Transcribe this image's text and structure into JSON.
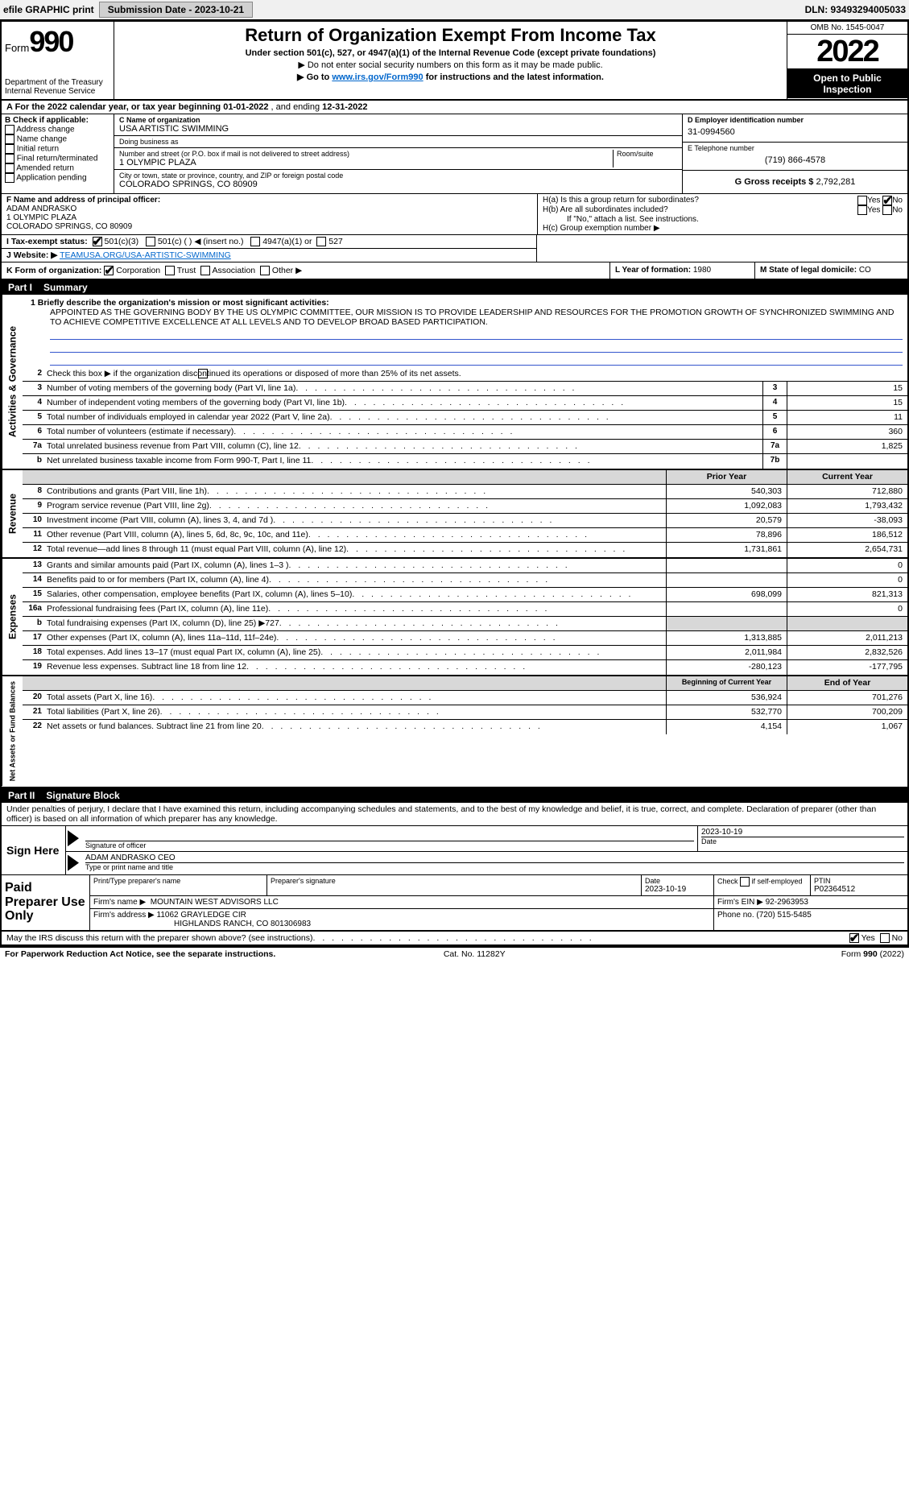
{
  "topbar": {
    "efile_label": "efile GRAPHIC print",
    "submission_label": "Submission Date - 2023-10-21",
    "dln_label": "DLN: 93493294005033"
  },
  "header": {
    "form_word": "Form",
    "form_number": "990",
    "dept1": "Department of the Treasury",
    "dept2": "Internal Revenue Service",
    "title": "Return of Organization Exempt From Income Tax",
    "subtitle": "Under section 501(c), 527, or 4947(a)(1) of the Internal Revenue Code (except private foundations)",
    "note1": "▶ Do not enter social security numbers on this form as it may be made public.",
    "note2_pre": "▶ Go to ",
    "note2_link": "www.irs.gov/Form990",
    "note2_post": " for instructions and the latest information.",
    "omb": "OMB No. 1545-0047",
    "year": "2022",
    "open": "Open to Public Inspection"
  },
  "period": {
    "text_pre": "A For the 2022 calendar year, or tax year beginning ",
    "begin": "01-01-2022",
    "mid": "   , and ending ",
    "end": "12-31-2022"
  },
  "colB": {
    "label": "B Check if applicable:",
    "items": [
      "Address change",
      "Name change",
      "Initial return",
      "Final return/terminated",
      "Amended return",
      "Application pending"
    ]
  },
  "colC": {
    "name_label": "C Name of organization",
    "name": "USA ARTISTIC SWIMMING",
    "dba_label": "Doing business as",
    "dba": "",
    "street_label": "Number and street (or P.O. box if mail is not delivered to street address)",
    "room_label": "Room/suite",
    "street": "1 OLYMPIC PLAZA",
    "city_label": "City or town, state or province, country, and ZIP or foreign postal code",
    "city": "COLORADO SPRINGS, CO  80909"
  },
  "colD": {
    "ein_label": "D Employer identification number",
    "ein": "31-0994560",
    "phone_label": "E Telephone number",
    "phone": "(719) 866-4578",
    "gross_label": "G Gross receipts $",
    "gross": "2,792,281"
  },
  "officer": {
    "label": "F Name and address of principal officer:",
    "name": "ADAM ANDRASKO",
    "street": "1 OLYMPIC PLAZA",
    "city": "COLORADO SPRINGS, CO  80909",
    "Ha": "H(a)  Is this a group return for subordinates?",
    "Hb": "H(b)  Are all subordinates included?",
    "Hb_note": "If \"No,\" attach a list. See instructions.",
    "Hc": "H(c)  Group exemption number ▶",
    "yes": "Yes",
    "no": "No"
  },
  "status": {
    "label_I": "I  Tax-exempt status:",
    "opt1": "501(c)(3)",
    "opt2": "501(c) (   ) ◀ (insert no.)",
    "opt3": "4947(a)(1) or",
    "opt4": "527",
    "label_J": "J  Website: ▶",
    "website": "TEAMUSA.ORG/USA-ARTISTIC-SWIMMING",
    "label_K": "K Form of organization:",
    "k_corp": "Corporation",
    "k_trust": "Trust",
    "k_assoc": "Association",
    "k_other": "Other ▶",
    "label_L": "L Year of formation: ",
    "L_val": "1980",
    "label_M": "M State of legal domicile: ",
    "M_val": "CO"
  },
  "part1": {
    "label": "Part I",
    "title": "Summary",
    "mission_label": "1  Briefly describe the organization's mission or most significant activities:",
    "mission": "APPOINTED AS THE GOVERNING BODY BY THE US OLYMPIC COMMITTEE, OUR MISSION IS TO PROVIDE LEADERSHIP AND RESOURCES FOR THE PROMOTION GROWTH OF SYNCHRONIZED SWIMMING AND TO ACHIEVE COMPETITIVE EXCELLENCE AT ALL LEVELS AND TO DEVELOP BROAD BASED PARTICIPATION.",
    "l2": "Check this box ▶      if the organization discontinued its operations or disposed of more than 25% of its net assets.",
    "l3": "Number of voting members of the governing body (Part VI, line 1a)",
    "l4": "Number of independent voting members of the governing body (Part VI, line 1b)",
    "l5": "Total number of individuals employed in calendar year 2022 (Part V, line 2a)",
    "l6": "Total number of volunteers (estimate if necessary)",
    "l7a": "Total unrelated business revenue from Part VIII, column (C), line 12",
    "l7b": "Net unrelated business taxable income from Form 990-T, Part I, line 11",
    "v3": "15",
    "v4": "15",
    "v5": "11",
    "v6": "360",
    "v7a": "1,825",
    "v7b": ""
  },
  "revexp": {
    "prior_hdr": "Prior Year",
    "curr_hdr": "Current Year",
    "lines": [
      {
        "n": "8",
        "t": "Contributions and grants (Part VIII, line 1h)",
        "p": "540,303",
        "c": "712,880"
      },
      {
        "n": "9",
        "t": "Program service revenue (Part VIII, line 2g)",
        "p": "1,092,083",
        "c": "1,793,432"
      },
      {
        "n": "10",
        "t": "Investment income (Part VIII, column (A), lines 3, 4, and 7d )",
        "p": "20,579",
        "c": "-38,093"
      },
      {
        "n": "11",
        "t": "Other revenue (Part VIII, column (A), lines 5, 6d, 8c, 9c, 10c, and 11e)",
        "p": "78,896",
        "c": "186,512"
      },
      {
        "n": "12",
        "t": "Total revenue—add lines 8 through 11 (must equal Part VIII, column (A), line 12)",
        "p": "1,731,861",
        "c": "2,654,731"
      },
      {
        "n": "13",
        "t": "Grants and similar amounts paid (Part IX, column (A), lines 1–3 )",
        "p": "",
        "c": "0"
      },
      {
        "n": "14",
        "t": "Benefits paid to or for members (Part IX, column (A), line 4)",
        "p": "",
        "c": "0"
      },
      {
        "n": "15",
        "t": "Salaries, other compensation, employee benefits (Part IX, column (A), lines 5–10)",
        "p": "698,099",
        "c": "821,313"
      },
      {
        "n": "16a",
        "t": "Professional fundraising fees (Part IX, column (A), line 11e)",
        "p": "",
        "c": "0"
      },
      {
        "n": "b",
        "t": "Total fundraising expenses (Part IX, column (D), line 25) ▶727",
        "p": "SHADE",
        "c": "SHADE"
      },
      {
        "n": "17",
        "t": "Other expenses (Part IX, column (A), lines 11a–11d, 11f–24e)",
        "p": "1,313,885",
        "c": "2,011,213"
      },
      {
        "n": "18",
        "t": "Total expenses. Add lines 13–17 (must equal Part IX, column (A), line 25)",
        "p": "2,011,984",
        "c": "2,832,526"
      },
      {
        "n": "19",
        "t": "Revenue less expenses. Subtract line 18 from line 12",
        "p": "-280,123",
        "c": "-177,795"
      }
    ],
    "net_hdr1": "Beginning of Current Year",
    "net_hdr2": "End of Year",
    "netlines": [
      {
        "n": "20",
        "t": "Total assets (Part X, line 16)",
        "p": "536,924",
        "c": "701,276"
      },
      {
        "n": "21",
        "t": "Total liabilities (Part X, line 26)",
        "p": "532,770",
        "c": "700,209"
      },
      {
        "n": "22",
        "t": "Net assets or fund balances. Subtract line 21 from line 20",
        "p": "4,154",
        "c": "1,067"
      }
    ],
    "side_gov": "Activities & Governance",
    "side_rev": "Revenue",
    "side_exp": "Expenses",
    "side_net": "Net Assets or Fund Balances"
  },
  "part2": {
    "label": "Part II",
    "title": "Signature Block",
    "jurat": "Under penalties of perjury, I declare that I have examined this return, including accompanying schedules and statements, and to the best of my knowledge and belief, it is true, correct, and complete. Declaration of preparer (other than officer) is based on all information of which preparer has any knowledge.",
    "sign_here": "Sign Here",
    "sig_of_officer": "Signature of officer",
    "sig_date": "2023-10-19",
    "date_label": "Date",
    "officer_name": "ADAM ANDRASKO CEO",
    "type_label": "Type or print name and title"
  },
  "preparer": {
    "label": "Paid Preparer Use Only",
    "h_name": "Print/Type preparer's name",
    "h_sig": "Preparer's signature",
    "h_date": "Date",
    "date": "2023-10-19",
    "h_self": "Check        if self-employed",
    "h_ptin": "PTIN",
    "ptin": "P02364512",
    "firm_label": "Firm's name     ▶",
    "firm": "MOUNTAIN WEST ADVISORS LLC",
    "ein_label": "Firm's EIN ▶",
    "ein": "92-2963953",
    "addr_label": "Firm's address ▶",
    "addr1": "11062 GRAYLEDGE CIR",
    "addr2": "HIGHLANDS RANCH, CO  801306983",
    "phone_label": "Phone no.",
    "phone": "(720) 515-5485"
  },
  "bottom": {
    "discuss": "May the IRS discuss this return with the preparer shown above? (see instructions)",
    "yes": "Yes",
    "no": "No",
    "pra": "For Paperwork Reduction Act Notice, see the separate instructions.",
    "cat": "Cat. No. 11282Y",
    "form": "Form 990 (2022)"
  }
}
